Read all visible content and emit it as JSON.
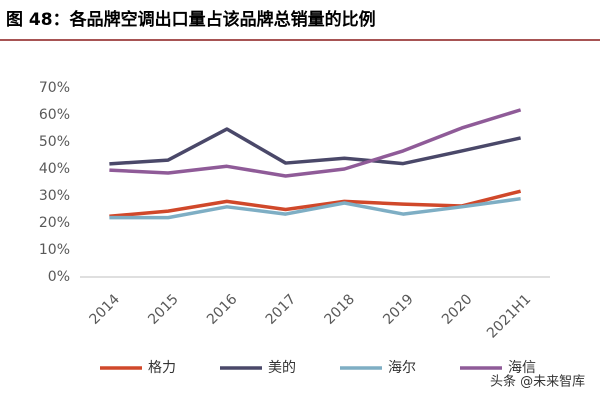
{
  "chart_data": {
    "type": "line",
    "title": "图 48：各品牌空调出口量占该品牌总销量的比例",
    "categories": [
      "2014",
      "2015",
      "2016",
      "2017",
      "2018",
      "2019",
      "2020",
      "2021H1"
    ],
    "series": [
      {
        "name": "格力",
        "color": "#d0482a",
        "values": [
          22.5,
          24.4,
          28,
          25,
          28,
          27,
          26.3,
          31.8
        ]
      },
      {
        "name": "美的",
        "color": "#4a4869",
        "values": [
          41.9,
          43.3,
          54.8,
          42.2,
          44,
          42,
          46.7,
          51.5
        ]
      },
      {
        "name": "海尔",
        "color": "#7eaec4",
        "values": [
          22,
          22,
          26,
          23.3,
          27.4,
          23.3,
          26,
          29
        ]
      },
      {
        "name": "海信",
        "color": "#8f5b98",
        "values": [
          39.6,
          38.5,
          41,
          37.4,
          40,
          46.7,
          55.2,
          61.9
        ]
      }
    ],
    "ylim": [
      0,
      70
    ],
    "yticks": [
      {
        "value": 0,
        "label": "0%"
      },
      {
        "value": 10,
        "label": "10%"
      },
      {
        "value": 20,
        "label": "20%"
      },
      {
        "value": 30,
        "label": "30%"
      },
      {
        "value": 40,
        "label": "40%"
      },
      {
        "value": 50,
        "label": "50%"
      },
      {
        "value": 60,
        "label": "60%"
      },
      {
        "value": 70,
        "label": "70%"
      }
    ],
    "grid": false,
    "legend": "bottom",
    "watermark": "头条 @未来智库"
  }
}
